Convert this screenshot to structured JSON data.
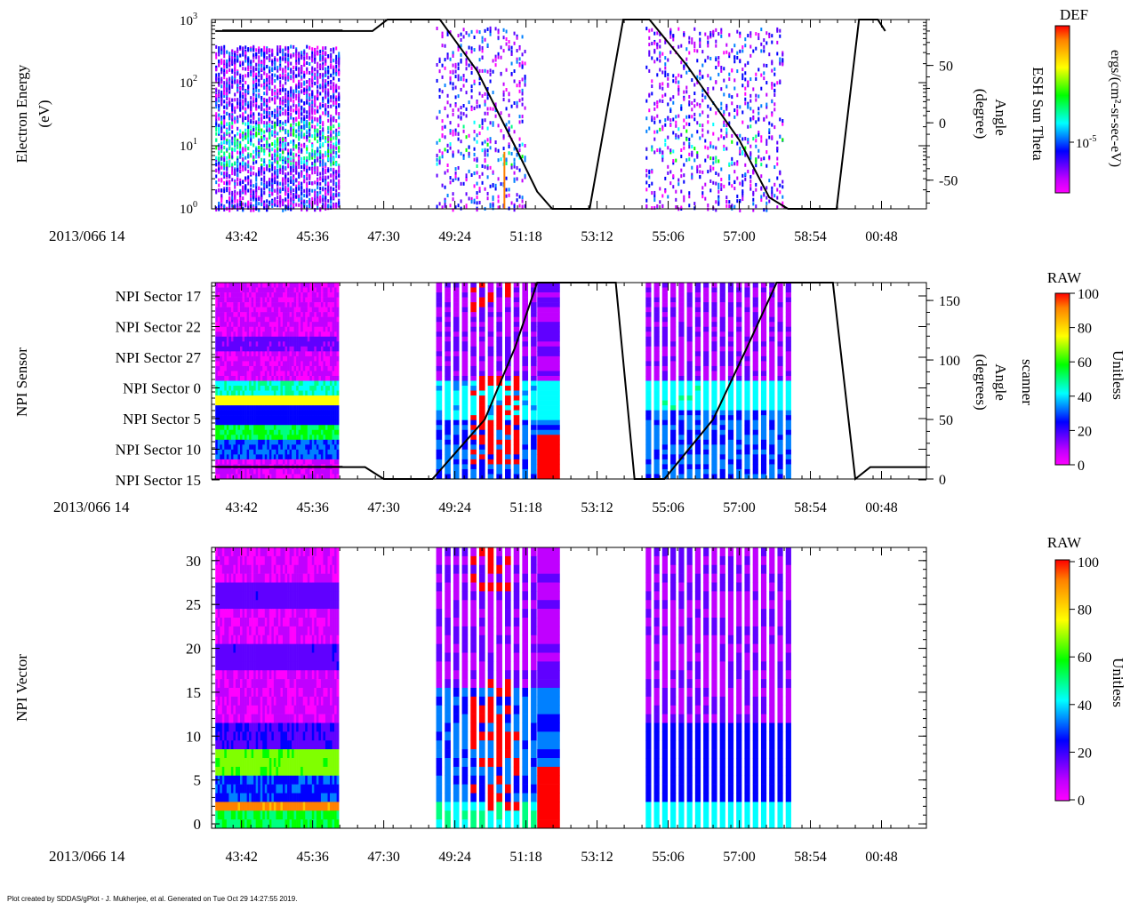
{
  "footer_text": "Plot created by SDDAS/gPlot - J. Mukherjee, et al.  Generated on Tue Oct 29 14:27:55 2019.",
  "colorscale": [
    "#ff00ff",
    "#c000ff",
    "#6000ff",
    "#0000ff",
    "#0080ff",
    "#00ffff",
    "#00ff80",
    "#00ff00",
    "#80ff00",
    "#ffff00",
    "#ffc000",
    "#ff8000",
    "#ff0000"
  ],
  "chart_data": [
    {
      "id": "panel1",
      "type": "heatmap",
      "ylabel": [
        "Electron Energy",
        "(eV)"
      ],
      "y_scale": "log",
      "ylim": [
        1,
        1000
      ],
      "ytick_labels": [
        "10",
        "10",
        "10",
        "10"
      ],
      "ytick_exponents": [
        "0",
        "1",
        "2",
        "3"
      ],
      "xlabel_date": "2013/066 14",
      "xtick_labels": [
        "43:42",
        "45:36",
        "47:30",
        "49:24",
        "51:18",
        "53:12",
        "55:06",
        "57:00",
        "58:54",
        "00:48"
      ],
      "xlim_minutes": [
        42.9,
        62.0
      ],
      "xtick_minutes": [
        43.7,
        45.6,
        47.5,
        49.4,
        51.3,
        53.2,
        55.1,
        57.0,
        58.9,
        60.8
      ],
      "right_axis": {
        "label": [
          "ESH Sun Theta",
          "Angle",
          "(degree)"
        ],
        "ylim": [
          -75,
          90
        ],
        "ticks": [
          50,
          0,
          -50
        ],
        "tick_labels": [
          "50",
          "0",
          "-50"
        ]
      },
      "colorbar": {
        "title": "DEF",
        "label": "ergs/(cm²-sr-sec-eV)",
        "tick_label": "10",
        "tick_exponent": "-5"
      },
      "data_blocks_minutes": [
        [
          43.0,
          46.3
        ],
        [
          48.9,
          51.3
        ],
        [
          54.5,
          58.2
        ]
      ],
      "angle_trace": [
        {
          "t": 43.0,
          "v": 80
        },
        {
          "t": 47.2,
          "v": 80
        },
        {
          "t": 47.6,
          "v": 90
        },
        {
          "t": 49.0,
          "v": 90
        },
        {
          "t": 50.0,
          "v": 45
        },
        {
          "t": 51.0,
          "v": -20
        },
        {
          "t": 51.6,
          "v": -60
        },
        {
          "t": 52.0,
          "v": -75
        },
        {
          "t": 53.0,
          "v": -75
        },
        {
          "t": 53.9,
          "v": 90
        },
        {
          "t": 54.6,
          "v": 90
        },
        {
          "t": 55.6,
          "v": 50
        },
        {
          "t": 57.0,
          "v": -15
        },
        {
          "t": 57.8,
          "v": -65
        },
        {
          "t": 58.3,
          "v": -75
        },
        {
          "t": 59.6,
          "v": -75
        },
        {
          "t": 60.2,
          "v": 90
        },
        {
          "t": 60.7,
          "v": 90
        },
        {
          "t": 60.9,
          "v": 80
        }
      ]
    },
    {
      "id": "panel2",
      "type": "heatmap",
      "ylabel": [
        "NPI Sensor"
      ],
      "categories": [
        "NPI Sector 17",
        "NPI Sector 22",
        "NPI Sector 27",
        "NPI Sector 0",
        "NPI Sector 5",
        "NPI Sector 10",
        "NPI Sector 15"
      ],
      "xlabel_date": "2013/066 14",
      "xtick_labels": [
        "43:42",
        "45:36",
        "47:30",
        "49:24",
        "51:18",
        "53:12",
        "55:06",
        "57:00",
        "58:54",
        "00:48"
      ],
      "right_axis": {
        "label": [
          "scanner",
          "Angle",
          "(degrees)"
        ],
        "ylim": [
          0,
          165
        ],
        "ticks": [
          150,
          100,
          50,
          0
        ],
        "tick_labels": [
          "150",
          "100",
          "50",
          "0"
        ]
      },
      "colorbar": {
        "title": "RAW",
        "label": "Unitless",
        "range": [
          0,
          100
        ],
        "tick_labels": [
          "100",
          "80",
          "60",
          "40",
          "20",
          "0"
        ]
      },
      "angle_trace": [
        {
          "t": 43.0,
          "v": 10
        },
        {
          "t": 47.0,
          "v": 10
        },
        {
          "t": 47.5,
          "v": 0
        },
        {
          "t": 48.8,
          "v": 0
        },
        {
          "t": 50.2,
          "v": 50
        },
        {
          "t": 51.0,
          "v": 110
        },
        {
          "t": 51.6,
          "v": 165
        },
        {
          "t": 53.7,
          "v": 165
        },
        {
          "t": 54.2,
          "v": 0
        },
        {
          "t": 55.0,
          "v": 0
        },
        {
          "t": 56.3,
          "v": 50
        },
        {
          "t": 57.2,
          "v": 110
        },
        {
          "t": 58.0,
          "v": 165
        },
        {
          "t": 59.5,
          "v": 165
        },
        {
          "t": 60.1,
          "v": 0
        },
        {
          "t": 60.5,
          "v": 10
        },
        {
          "t": 62.0,
          "v": 10
        }
      ]
    },
    {
      "id": "panel3",
      "type": "heatmap",
      "ylabel": [
        "NPI Vector"
      ],
      "ylim": [
        -0.5,
        31.5
      ],
      "ytick_labels": [
        "30",
        "25",
        "20",
        "15",
        "10",
        "5",
        "0"
      ],
      "ytick_values": [
        30,
        25,
        20,
        15,
        10,
        5,
        0
      ],
      "xlabel_date": "2013/066 14",
      "xtick_labels": [
        "43:42",
        "45:36",
        "47:30",
        "49:24",
        "51:18",
        "53:12",
        "55:06",
        "57:00",
        "58:54",
        "00:48"
      ],
      "colorbar": {
        "title": "RAW",
        "label": "Unitless",
        "range": [
          0,
          100
        ],
        "tick_labels": [
          "100",
          "80",
          "60",
          "40",
          "20",
          "0"
        ]
      }
    }
  ]
}
